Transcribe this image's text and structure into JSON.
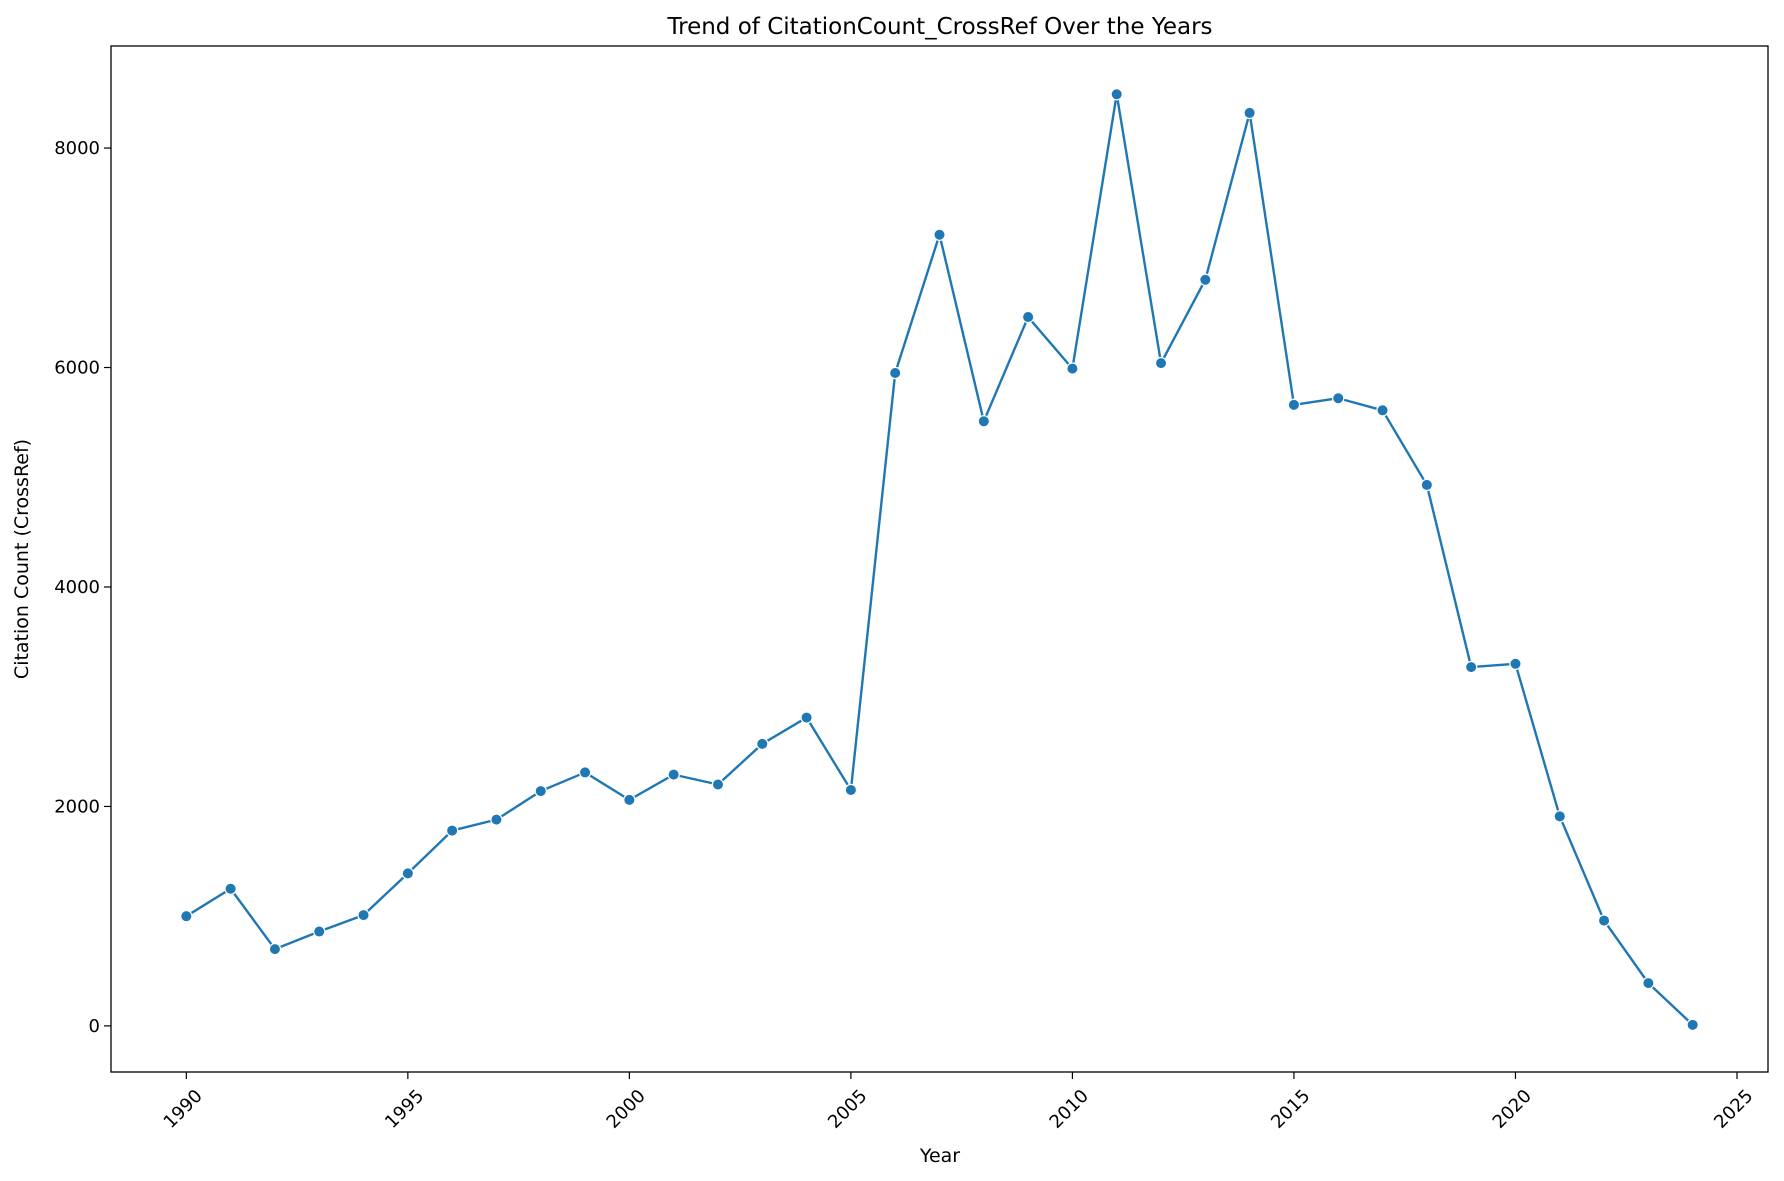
{
  "chart_data": {
    "type": "line",
    "title": "Trend of CitationCount_CrossRef Over the Years",
    "xlabel": "Year",
    "ylabel": "Citation Count (CrossRef)",
    "xlim": [
      1988.3,
      2025.7
    ],
    "ylim": [
      -420,
      8930
    ],
    "x_ticks": [
      1990,
      1995,
      2000,
      2005,
      2010,
      2015,
      2020,
      2025
    ],
    "y_ticks": [
      0,
      2000,
      4000,
      6000,
      8000
    ],
    "grid": false,
    "legend": "none",
    "color": "#1f77b4",
    "series": [
      {
        "x": [
          1990,
          1991,
          1992,
          1993,
          1994,
          1995,
          1996,
          1997,
          1998,
          1999,
          2000,
          2001,
          2002,
          2003,
          2004,
          2005,
          2006,
          2007,
          2008,
          2009,
          2010,
          2011,
          2012,
          2013,
          2014,
          2015,
          2016,
          2017,
          2018,
          2019,
          2020,
          2021,
          2022,
          2023,
          2024
        ],
        "values": [
          1000,
          1250,
          700,
          860,
          1010,
          1390,
          1780,
          1880,
          2140,
          2310,
          2060,
          2290,
          2200,
          2570,
          2810,
          2150,
          5950,
          7210,
          5510,
          6460,
          5990,
          8490,
          6040,
          6800,
          8320,
          5660,
          5720,
          5610,
          4930,
          3270,
          3300,
          1910,
          960,
          390,
          10
        ]
      }
    ]
  }
}
